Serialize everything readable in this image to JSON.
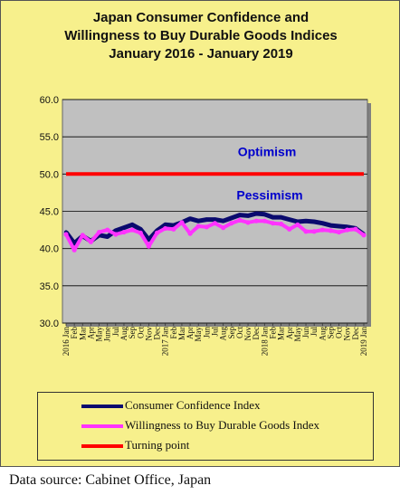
{
  "chart_data": {
    "type": "line",
    "title": [
      "Japan Consumer Confidence and",
      "Willingness to Buy Durable Goods Indices",
      "January 2016 - January 2019"
    ],
    "ylim": [
      30,
      60
    ],
    "yticks": [
      "60.0",
      "55.0",
      "50.0",
      "45.0",
      "40.0",
      "35.0",
      "30.0"
    ],
    "grid": true,
    "legend_position": "bottom",
    "x": [
      "2016 Jan",
      "Feb",
      "Mar",
      "Apr",
      "May",
      "June",
      "Jul",
      "Aug",
      "Sep",
      "Oct",
      "Nov",
      "Dec",
      "2017 Jan",
      "Feb",
      "Mar",
      "Apr",
      "May",
      "Jun",
      "Jul",
      "Aug",
      "Sep",
      "Oct",
      "Nov",
      "Dec",
      "2018 Jan",
      "Feb",
      "Mar",
      "Apr",
      "May",
      "Jun",
      "Jul",
      "Aug",
      "Sep",
      "Oct",
      "Nov",
      "Dec",
      "2019 Jan"
    ],
    "series": [
      {
        "name": "Consumer Confidence Index",
        "color": "#0a0a6e",
        "values": [
          42.2,
          40.7,
          41.7,
          41.0,
          41.8,
          41.6,
          42.4,
          42.8,
          43.2,
          42.6,
          41.2,
          42.4,
          43.2,
          43.1,
          43.5,
          44.0,
          43.7,
          43.9,
          43.9,
          43.7,
          44.1,
          44.5,
          44.4,
          44.7,
          44.6,
          44.2,
          44.2,
          43.9,
          43.6,
          43.7,
          43.6,
          43.4,
          43.1,
          43.0,
          42.9,
          42.7,
          41.9
        ]
      },
      {
        "name": "Willingness to Buy Durable Goods Index",
        "color": "#ff33ff",
        "values": [
          41.9,
          39.8,
          41.8,
          40.9,
          42.2,
          42.5,
          41.9,
          42.2,
          42.5,
          42.1,
          40.3,
          42.1,
          42.7,
          42.6,
          43.5,
          42.0,
          43.0,
          42.9,
          43.4,
          42.8,
          43.4,
          43.8,
          43.5,
          43.7,
          43.7,
          43.4,
          43.3,
          42.6,
          43.2,
          42.3,
          42.3,
          42.5,
          42.4,
          42.2,
          42.5,
          42.6,
          41.8
        ]
      },
      {
        "name": "Turning point",
        "color": "#ff0000",
        "values": [
          50,
          50,
          50,
          50,
          50,
          50,
          50,
          50,
          50,
          50,
          50,
          50,
          50,
          50,
          50,
          50,
          50,
          50,
          50,
          50,
          50,
          50,
          50,
          50,
          50,
          50,
          50,
          50,
          50,
          50,
          50,
          50,
          50,
          50,
          50,
          50,
          50
        ]
      }
    ],
    "annotations": [
      "Optimism",
      "Pessimism"
    ],
    "annotation_color": "#0000cc",
    "plot_background": "#c0c0c0"
  },
  "source": "Data source: Cabinet Office, Japan"
}
